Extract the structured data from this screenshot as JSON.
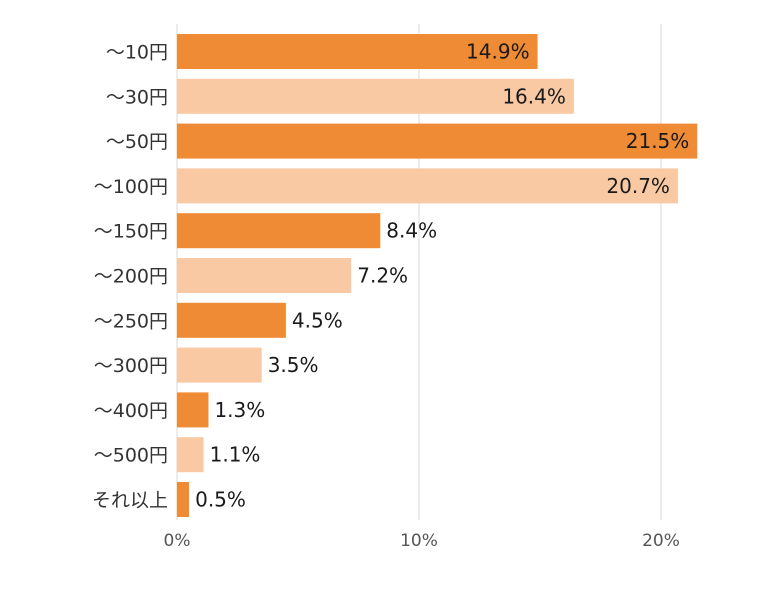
{
  "colors": {
    "dark": "#ef8a35",
    "light": "#f8c9a2",
    "grid": "#d9d9d9"
  },
  "chart_data": {
    "type": "bar",
    "orientation": "horizontal",
    "categories": [
      "～10円",
      "～30円",
      "～50円",
      "～100円",
      "～150円",
      "～200円",
      "～250円",
      "～300円",
      "～400円",
      "～500円",
      "それ以上"
    ],
    "values": [
      14.9,
      16.4,
      21.5,
      20.7,
      8.4,
      7.2,
      4.5,
      3.5,
      1.3,
      1.1,
      0.5
    ],
    "data_labels": [
      "14.9%",
      "16.4%",
      "21.5%",
      "20.7%",
      "8.4%",
      "7.2%",
      "4.5%",
      "3.5%",
      "1.3%",
      "1.1%",
      "0.5%"
    ],
    "bar_colors": [
      "dark",
      "light",
      "dark",
      "light",
      "dark",
      "light",
      "dark",
      "light",
      "dark",
      "light",
      "dark"
    ],
    "xlim": [
      0,
      22.5
    ],
    "x_ticks": [
      0,
      10,
      20
    ],
    "x_tick_labels": [
      "0%",
      "10%",
      "20%"
    ],
    "grid": true,
    "legend": "none",
    "title": "",
    "xlabel": "",
    "ylabel": ""
  }
}
